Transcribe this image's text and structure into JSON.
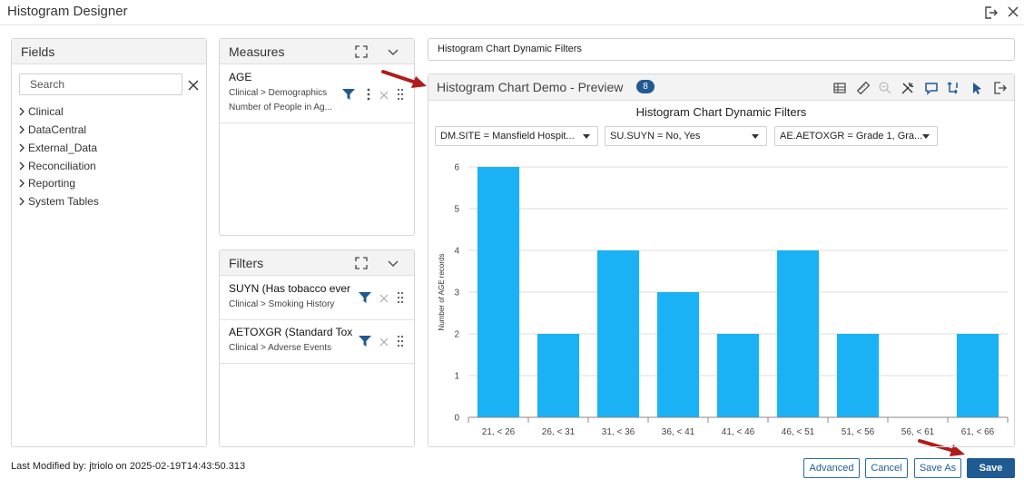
{
  "window": {
    "title": "Histogram Designer"
  },
  "fields": {
    "title": "Fields",
    "search_placeholder": "Search",
    "items": [
      "Clinical",
      "DataCentral",
      "External_Data",
      "Reconciliation",
      "Reporting",
      "System Tables"
    ]
  },
  "measures": {
    "title": "Measures",
    "items": [
      {
        "name": "AGE",
        "path": "Clinical > Demographics",
        "desc": "Number of People in Ag..."
      }
    ]
  },
  "filters": {
    "title": "Filters",
    "items": [
      {
        "name": "SUYN (Has tobacco ever been",
        "path": "Clinical > Smoking History"
      },
      {
        "name": "AETOXGR (Standard Toxicity",
        "path": "Clinical > Adverse Events"
      }
    ]
  },
  "chart_title_input": "Histogram Chart Dynamic Filters",
  "preview": {
    "title": "Histogram Chart Demo - Preview",
    "badge": "8",
    "heading": "Histogram Chart Dynamic Filters",
    "dynamic_filters": [
      "DM.SITE = Mansfield Hospit...",
      "SU.SUYN = No, Yes",
      "AE.AETOXGR = Grade 1, Gra..."
    ]
  },
  "chart_data": {
    "type": "bar",
    "title": "Histogram Chart Dynamic Filters",
    "xlabel": "",
    "ylabel": "Number of AGE records",
    "categories": [
      "21, < 26",
      "26, < 31",
      "31, < 36",
      "36, < 41",
      "41, < 46",
      "46, < 51",
      "51, < 56",
      "56, < 61",
      "61, < 66"
    ],
    "values": [
      6,
      2,
      4,
      3,
      2,
      4,
      2,
      0,
      2
    ],
    "ylim": [
      0,
      6
    ],
    "yticks": [
      "0",
      "1",
      "2",
      "3",
      "4",
      "5",
      "6"
    ],
    "grid": true,
    "bar_color": "#1ab2f4"
  },
  "footer": {
    "last_modified": "Last Modified by: jtriolo on 2025-02-19T14:43:50.313",
    "buttons": {
      "advanced": "Advanced",
      "cancel": "Cancel",
      "save_as": "Save As",
      "save": "Save"
    }
  },
  "colors": {
    "accent": "#1f5a93",
    "annotation_arrow": "#b01c1c",
    "bar": "#1ab2f4"
  }
}
